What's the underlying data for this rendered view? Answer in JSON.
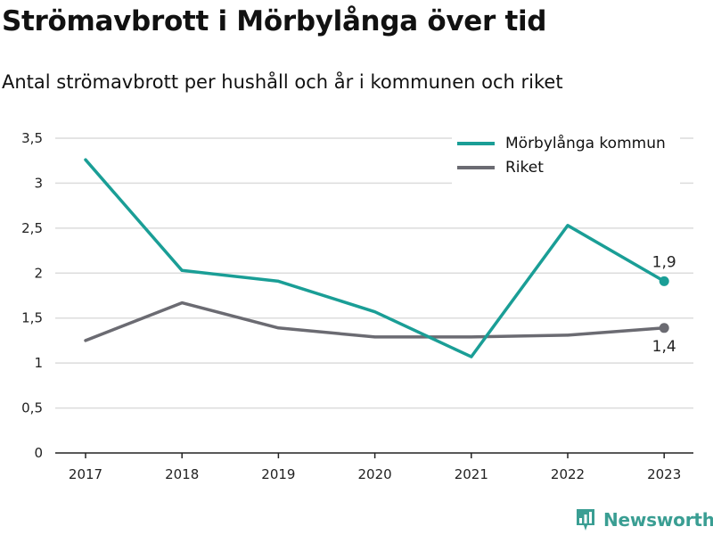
{
  "title": "Strömavbrott i Mörbylånga över tid",
  "subtitle": "Antal strömavbrott per hushåll och år i kommunen och riket",
  "brand": {
    "name": "Newsworthy",
    "color": "#3a9e93"
  },
  "chart_data": {
    "type": "line",
    "categories": [
      "2017",
      "2018",
      "2019",
      "2020",
      "2021",
      "2022",
      "2023"
    ],
    "ylim": [
      0,
      3.5
    ],
    "yticks": [
      "0",
      "0,5",
      "1",
      "1,5",
      "2",
      "2,5",
      "3",
      "3,5"
    ],
    "grid": true,
    "legend_position": "top-right",
    "series": [
      {
        "name": "Mörbylånga kommun",
        "color": "#1a9e96",
        "values": [
          3.26,
          2.03,
          1.91,
          1.57,
          1.07,
          2.53,
          1.91
        ],
        "end_label": "1,9",
        "end_label_position": "above"
      },
      {
        "name": "Riket",
        "color": "#6b6b72",
        "values": [
          1.25,
          1.67,
          1.39,
          1.29,
          1.29,
          1.31,
          1.39
        ],
        "end_label": "1,4",
        "end_label_position": "below"
      }
    ]
  }
}
